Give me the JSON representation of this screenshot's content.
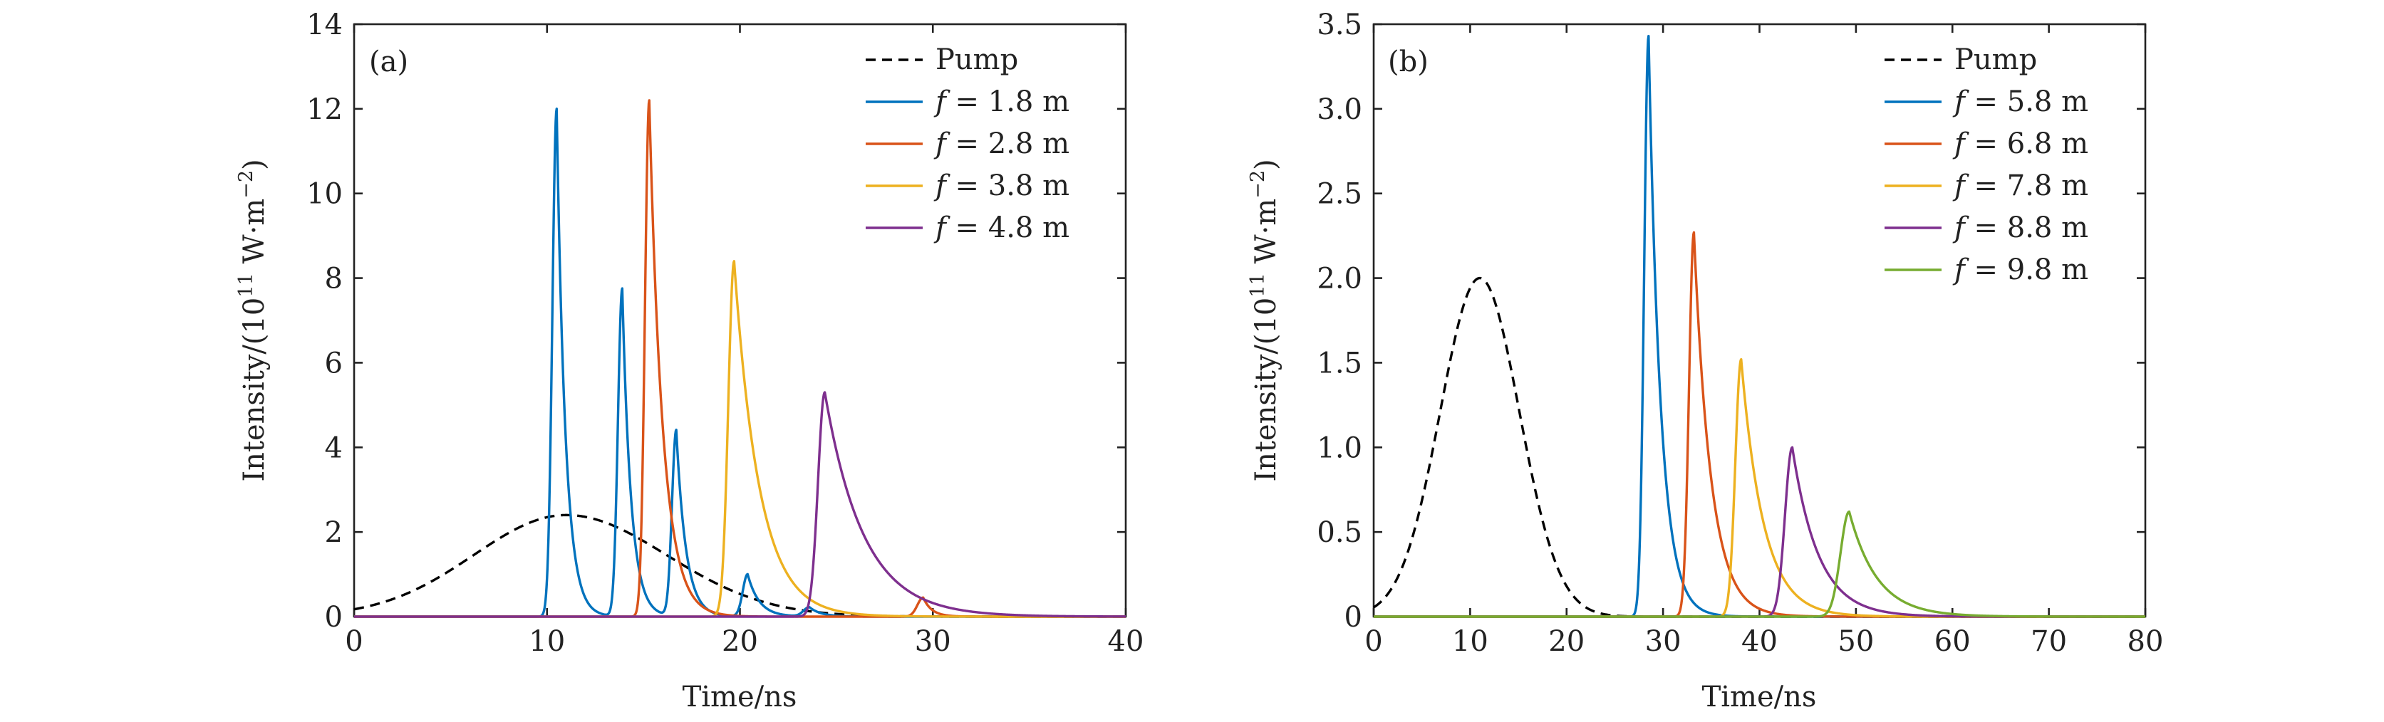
{
  "chart_data": [
    {
      "type": "line",
      "panel_label": "(a)",
      "xlabel": "Time/ns",
      "ylabel_main": "Intensity/(10",
      "ylabel_sup": "11",
      "ylabel_unit": " W·m",
      "ylabel_unit_sup": "−2",
      "ylabel_end": ")",
      "xlim": [
        0,
        40
      ],
      "ylim": [
        0,
        14
      ],
      "xticks": [
        "0",
        "10",
        "20",
        "30",
        "40"
      ],
      "yticks": [
        "0",
        "2",
        "4",
        "6",
        "8",
        "10",
        "12",
        "14"
      ],
      "legend_position": "top-right",
      "series": [
        {
          "name": "Pump",
          "italic_f": false,
          "text": "Pump",
          "color": "#000000",
          "dashed": true,
          "shape": {
            "kind": "gauss",
            "peak": 2.4,
            "center": 11.0,
            "sigma_left": 4.8,
            "sigma_right": 5.2
          }
        },
        {
          "name": "f = 1.8 m",
          "italic_f": true,
          "value": " = 1.8 m",
          "color": "#0072BD",
          "shape": {
            "kind": "peaks",
            "peaks": [
              {
                "t0": 10.5,
                "peak": 12.0,
                "rise": 0.22,
                "decay": 0.45
              },
              {
                "t0": 13.9,
                "peak": 7.75,
                "rise": 0.22,
                "decay": 0.45
              },
              {
                "t0": 16.7,
                "peak": 4.4,
                "rise": 0.22,
                "decay": 0.5
              },
              {
                "t0": 20.4,
                "peak": 1.0,
                "rise": 0.25,
                "decay": 0.6
              },
              {
                "t0": 23.6,
                "peak": 0.22,
                "rise": 0.3,
                "decay": 0.6
              }
            ]
          }
        },
        {
          "name": "f = 2.8 m",
          "italic_f": true,
          "value": " = 2.8 m",
          "color": "#D95319",
          "shape": {
            "kind": "peaks",
            "peaks": [
              {
                "t0": 15.3,
                "peak": 12.2,
                "rise": 0.22,
                "decay": 0.7
              },
              {
                "t0": 29.5,
                "peak": 0.45,
                "rise": 0.3,
                "decay": 0.45
              }
            ]
          }
        },
        {
          "name": "f = 3.8 m",
          "italic_f": true,
          "value": " = 3.8 m",
          "color": "#EDB120",
          "shape": {
            "kind": "peaks",
            "peaks": [
              {
                "t0": 19.7,
                "peak": 8.4,
                "rise": 0.3,
                "decay": 1.3
              }
            ]
          }
        },
        {
          "name": "f = 4.8 m",
          "italic_f": true,
          "value": " = 4.8 m",
          "color": "#7E2F8E",
          "shape": {
            "kind": "peaks",
            "peaks": [
              {
                "t0": 24.4,
                "peak": 5.3,
                "rise": 0.35,
                "decay": 2.0
              }
            ]
          }
        }
      ]
    },
    {
      "type": "line",
      "panel_label": "(b)",
      "xlabel": "Time/ns",
      "ylabel_main": "Intensity/(10",
      "ylabel_sup": "11",
      "ylabel_unit": " W·m",
      "ylabel_unit_sup": "−2",
      "ylabel_end": ")",
      "xlim": [
        0,
        80
      ],
      "ylim": [
        0,
        3.5
      ],
      "xticks": [
        "0",
        "10",
        "20",
        "30",
        "40",
        "50",
        "60",
        "70",
        "80"
      ],
      "yticks": [
        "0",
        "0.5",
        "1.0",
        "1.5",
        "2.0",
        "2.5",
        "3.0",
        "3.5"
      ],
      "legend_position": "top-right",
      "series": [
        {
          "name": "Pump",
          "italic_f": false,
          "text": "Pump",
          "color": "#000000",
          "dashed": true,
          "shape": {
            "kind": "gauss",
            "peak": 2.0,
            "center": 11.0,
            "sigma_left": 4.1,
            "sigma_right": 4.1
          }
        },
        {
          "name": "f = 5.8 m",
          "italic_f": true,
          "value": " = 5.8 m",
          "color": "#0072BD",
          "shape": {
            "kind": "peaks",
            "peaks": [
              {
                "t0": 28.5,
                "peak": 3.43,
                "rise": 0.45,
                "decay": 1.25
              }
            ]
          }
        },
        {
          "name": "f = 6.8 m",
          "italic_f": true,
          "value": " = 6.8 m",
          "color": "#D95319",
          "shape": {
            "kind": "peaks",
            "peaks": [
              {
                "t0": 33.2,
                "peak": 2.27,
                "rise": 0.5,
                "decay": 1.75
              }
            ]
          }
        },
        {
          "name": "f = 7.8 m",
          "italic_f": true,
          "value": " = 7.8 m",
          "color": "#EDB120",
          "shape": {
            "kind": "peaks",
            "peaks": [
              {
                "t0": 38.1,
                "peak": 1.52,
                "rise": 0.6,
                "decay": 2.3
              }
            ]
          }
        },
        {
          "name": "f = 8.8 m",
          "italic_f": true,
          "value": " = 8.8 m",
          "color": "#7E2F8E",
          "shape": {
            "kind": "peaks",
            "peaks": [
              {
                "t0": 43.4,
                "peak": 1.0,
                "rise": 0.75,
                "decay": 2.7
              }
            ]
          }
        },
        {
          "name": "f = 9.8 m",
          "italic_f": true,
          "value": " = 9.8 m",
          "color": "#77AC30",
          "shape": {
            "kind": "peaks",
            "peaks": [
              {
                "t0": 49.3,
                "peak": 0.62,
                "rise": 0.9,
                "decay": 2.9
              }
            ]
          }
        }
      ]
    }
  ]
}
